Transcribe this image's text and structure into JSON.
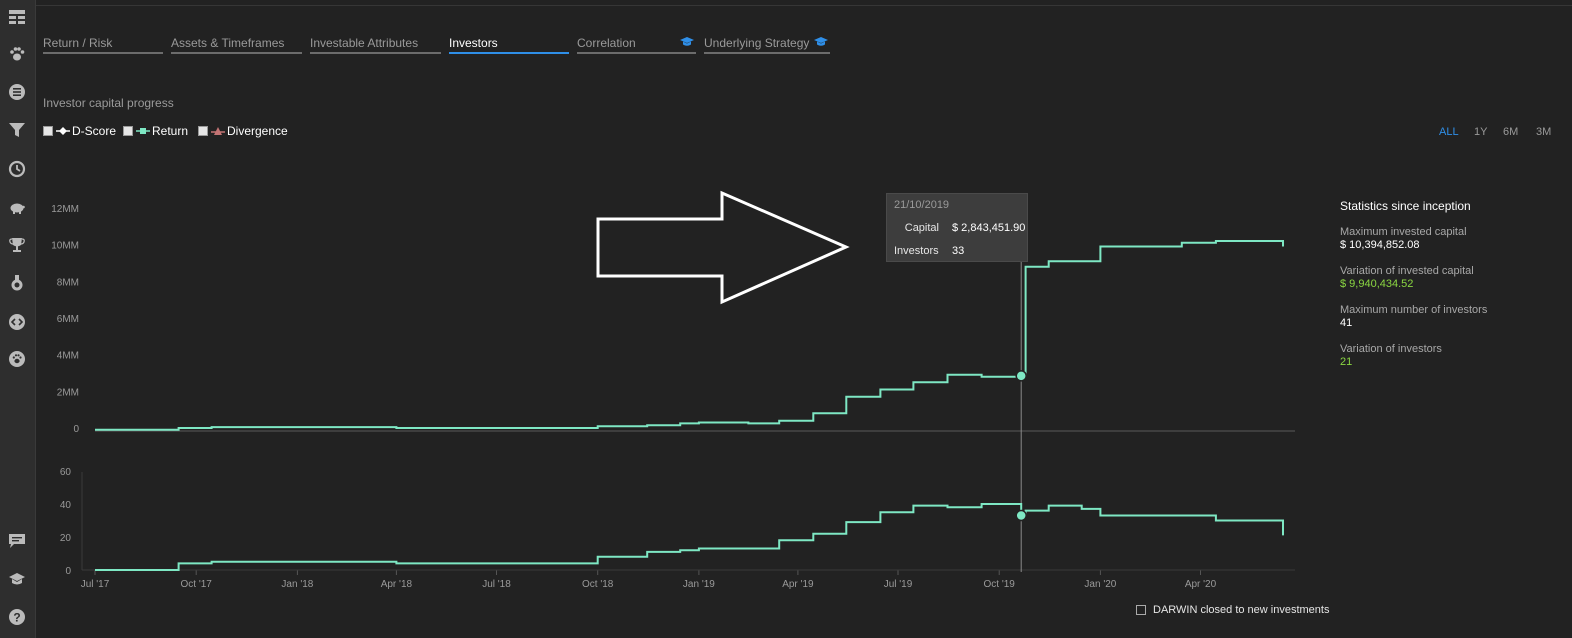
{
  "sidebar": {
    "icons": [
      {
        "name": "dashboard-icon"
      },
      {
        "name": "paw-icon"
      },
      {
        "name": "list-icon"
      },
      {
        "name": "filter-icon"
      },
      {
        "name": "history-icon"
      },
      {
        "name": "piggy-bank-icon"
      },
      {
        "name": "trophy-icon"
      },
      {
        "name": "medal-icon"
      },
      {
        "name": "code-icon"
      },
      {
        "name": "paw-circle-icon"
      },
      {
        "name": "chat-icon"
      },
      {
        "name": "graduation-cap-icon"
      },
      {
        "name": "help-icon"
      }
    ]
  },
  "tabs": [
    {
      "label": "Return / Risk"
    },
    {
      "label": "Assets & Timeframes"
    },
    {
      "label": "Investable Attributes"
    },
    {
      "label": "Investors",
      "active": true
    },
    {
      "label": "Correlation",
      "icon": "graduation-cap-icon"
    },
    {
      "label": "Underlying Strategy",
      "icon": "graduation-cap-icon"
    }
  ],
  "section_title": "Investor capital progress",
  "legend": {
    "dscore": "D-Score",
    "return": "Return",
    "divergence": "Divergence"
  },
  "ranges": {
    "all": "ALL",
    "y1": "1Y",
    "m6": "6M",
    "m3": "3M"
  },
  "tooltip": {
    "date": "21/10/2019",
    "capital_label": "Capital",
    "capital_value": "$ 2,843,451.90",
    "investors_label": "Investors",
    "investors_value": "33"
  },
  "stats": {
    "title": "Statistics since inception",
    "max_capital_label": "Maximum invested capital",
    "max_capital_value": "$ 10,394,852.08",
    "var_capital_label": "Variation of invested capital",
    "var_capital_value": "$ 9,940,434.52",
    "max_investors_label": "Maximum number of investors",
    "max_investors_value": "41",
    "var_investors_label": "Variation of investors",
    "var_investors_value": "21"
  },
  "closed_label": "DARWIN closed to new investments",
  "colors": {
    "line": "#7ee8c4",
    "accent": "#2f8fe8",
    "green": "#8bd742",
    "background": "#222222"
  },
  "chart_data": [
    {
      "type": "line",
      "title": "",
      "ylabel": "",
      "ylim": [
        0,
        12000000
      ],
      "yticks": [
        "0",
        "2MM",
        "4MM",
        "6MM",
        "8MM",
        "10MM",
        "12MM"
      ],
      "x": [
        "2017-07-01",
        "2017-08-15",
        "2017-09-15",
        "2017-10-15",
        "2018-01-01",
        "2018-04-01",
        "2018-07-01",
        "2018-09-01",
        "2018-10-01",
        "2018-11-15",
        "2018-12-15",
        "2019-01-01",
        "2019-02-15",
        "2019-03-15",
        "2019-04-15",
        "2019-05-15",
        "2019-06-15",
        "2019-07-15",
        "2019-08-15",
        "2019-09-15",
        "2019-10-21",
        "2019-10-25",
        "2019-11-15",
        "2019-12-15",
        "2020-01-01",
        "2020-02-15",
        "2020-03-15",
        "2020-04-15",
        "2020-05-15",
        "2020-06-15"
      ],
      "series": [
        {
          "values": [
            -100000,
            -100000,
            0,
            50000,
            50000,
            0,
            0,
            0,
            100000,
            150000,
            250000,
            300000,
            250000,
            400000,
            800000,
            1700000,
            2100000,
            2500000,
            2900000,
            2800000,
            2843452,
            8800000,
            9100000,
            9100000,
            9900000,
            9900000,
            10100000,
            10200000,
            10200000,
            9900000
          ]
        }
      ],
      "highlight": {
        "x": "2019-10-21",
        "y": 2843452
      }
    },
    {
      "type": "line",
      "title": "",
      "ylabel": "",
      "ylim": [
        0,
        60
      ],
      "yticks": [
        "0",
        "20",
        "40",
        "60"
      ],
      "xticks": [
        "Jul '17",
        "Oct '17",
        "Jan '18",
        "Apr '18",
        "Jul '18",
        "Oct '18",
        "Jan '19",
        "Apr '19",
        "Jul '19",
        "Oct '19",
        "Jan '20",
        "Apr '20"
      ],
      "x": [
        "2017-07-01",
        "2017-08-15",
        "2017-09-15",
        "2017-10-15",
        "2018-01-01",
        "2018-04-01",
        "2018-07-01",
        "2018-09-01",
        "2018-10-01",
        "2018-11-15",
        "2018-12-15",
        "2019-01-01",
        "2019-02-15",
        "2019-03-15",
        "2019-04-15",
        "2019-05-15",
        "2019-06-15",
        "2019-07-15",
        "2019-08-15",
        "2019-09-15",
        "2019-10-21",
        "2019-10-25",
        "2019-11-15",
        "2019-12-15",
        "2020-01-01",
        "2020-02-15",
        "2020-03-15",
        "2020-04-15",
        "2020-05-15",
        "2020-06-15"
      ],
      "series": [
        {
          "values": [
            0,
            0,
            4,
            5,
            5,
            4,
            4,
            4,
            8,
            11,
            12,
            13,
            13,
            18,
            22,
            29,
            35,
            39,
            38,
            40,
            33,
            36,
            39,
            37,
            33,
            33,
            33,
            30,
            30,
            21
          ]
        }
      ],
      "highlight": {
        "x": "2019-10-21",
        "y": 33
      }
    }
  ]
}
